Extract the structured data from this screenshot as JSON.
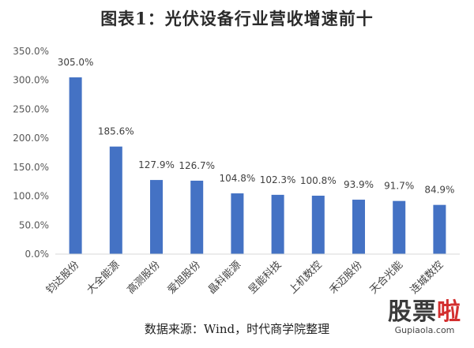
{
  "chart_data": {
    "type": "bar",
    "title": "图表1：光伏设备行业营收增速前十",
    "categories": [
      "钧达股份",
      "大全能源",
      "高测股份",
      "爱旭股份",
      "晶科能源",
      "昱能科技",
      "上机数控",
      "禾迈股份",
      "天合光能",
      "连城数控"
    ],
    "values": [
      305.0,
      185.6,
      127.9,
      126.7,
      104.8,
      102.3,
      100.8,
      93.9,
      91.7,
      84.9
    ],
    "value_labels": [
      "305.0%",
      "185.6%",
      "127.9%",
      "126.7%",
      "104.8%",
      "102.3%",
      "100.8%",
      "93.9%",
      "91.7%",
      "84.9%"
    ],
    "ylim": [
      0,
      350
    ],
    "yticks": [
      0,
      50,
      100,
      150,
      200,
      250,
      300,
      350
    ],
    "ytick_labels": [
      "0.0%",
      "50.0%",
      "100.0%",
      "150.0%",
      "200.0%",
      "250.0%",
      "300.0%",
      "350.0%"
    ],
    "grid": false,
    "bar_color": "#4472C4"
  },
  "source": "数据来源：Wind，时代商学院整理",
  "watermark": {
    "part1": "股票",
    "part2": "啦",
    "url": "Gupiaola.com"
  }
}
